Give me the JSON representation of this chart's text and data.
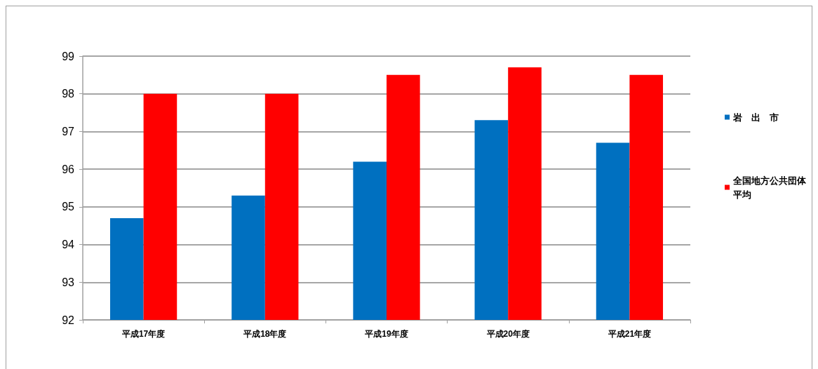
{
  "chart_data": {
    "type": "bar",
    "categories": [
      "平成17年度",
      "平成18年度",
      "平成19年度",
      "平成20年度",
      "平成21年度"
    ],
    "series": [
      {
        "name": "岩　出　市",
        "color": "#0070c0",
        "values": [
          94.7,
          95.3,
          96.2,
          97.3,
          96.7
        ]
      },
      {
        "name": "全国地方公共団体平均",
        "color": "#ff0000",
        "values": [
          98.0,
          98.0,
          98.5,
          98.7,
          98.5
        ]
      }
    ],
    "ylim": [
      92,
      99
    ],
    "yticks": [
      92,
      93,
      94,
      95,
      96,
      97,
      98,
      99
    ],
    "grid": "y",
    "legend": "right"
  }
}
